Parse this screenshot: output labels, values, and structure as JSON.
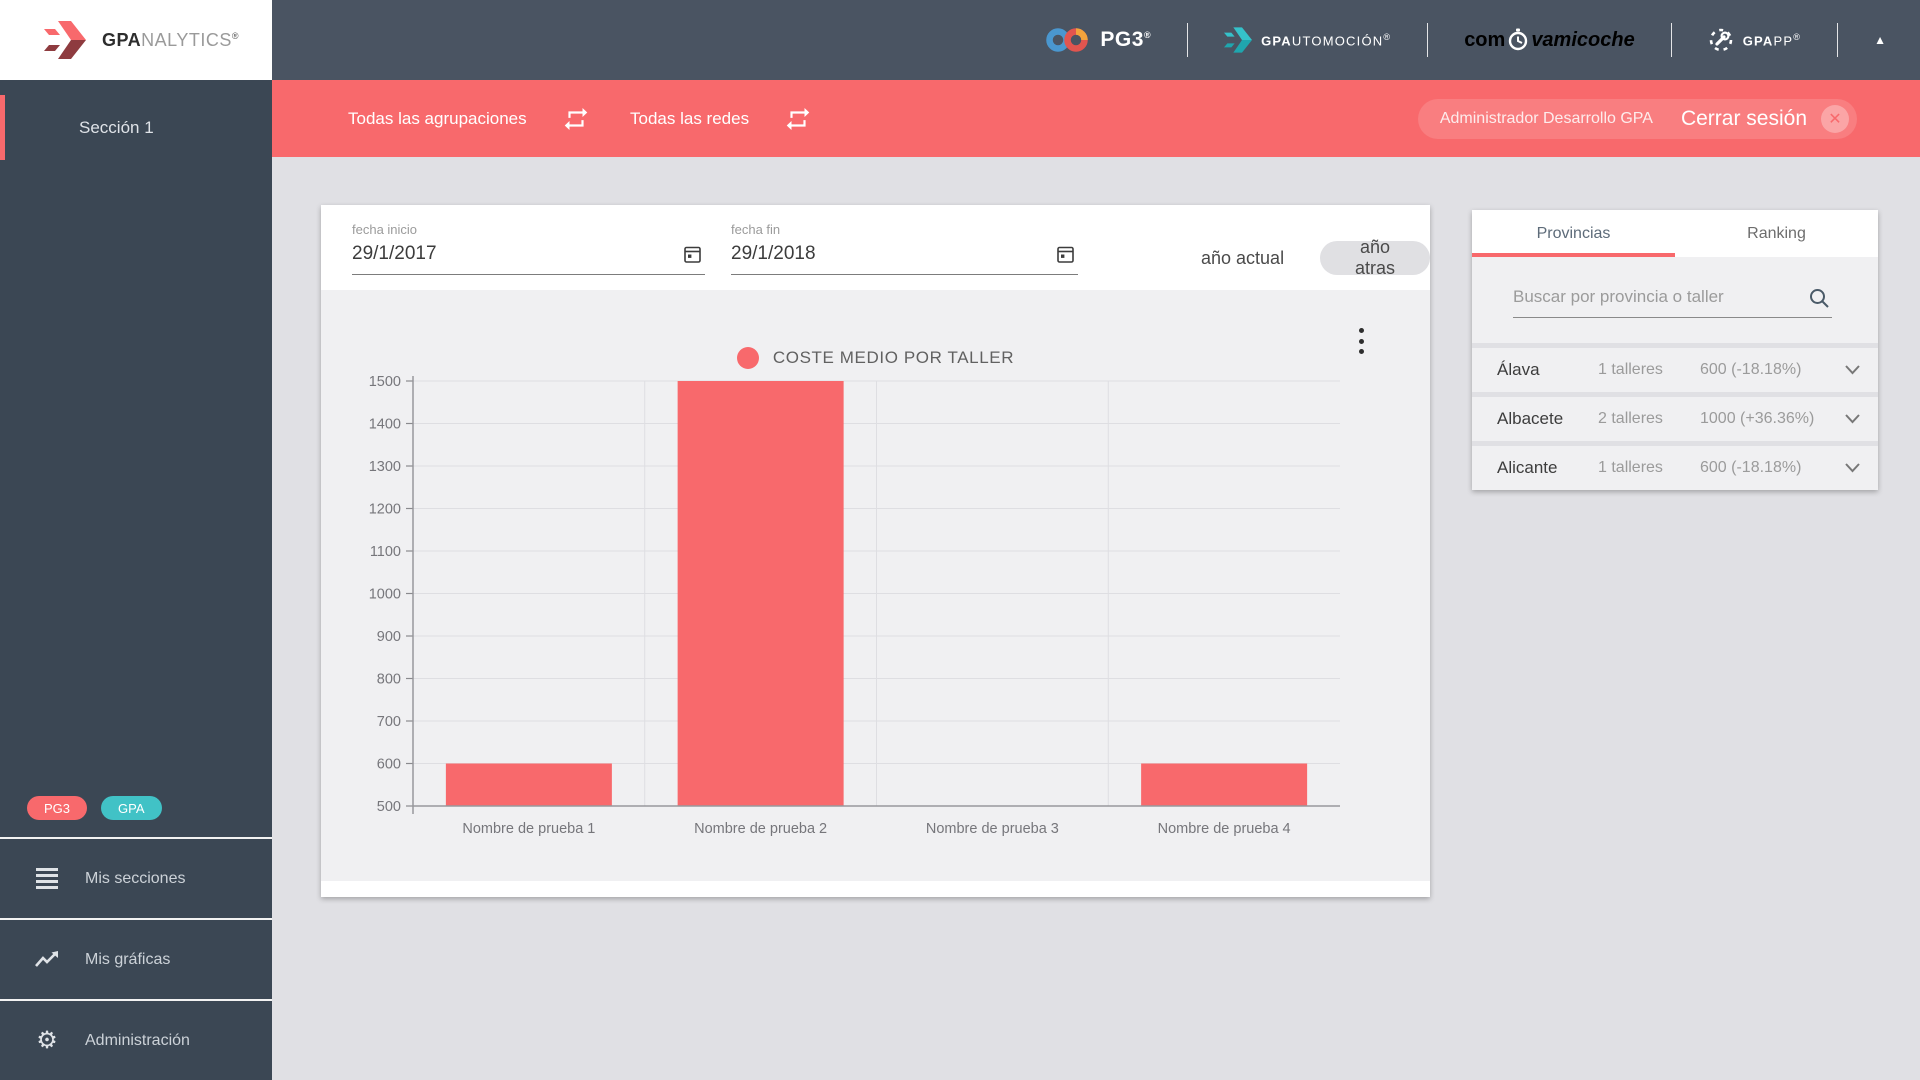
{
  "brand": {
    "bold": "GPA",
    "light": "NALYTICS",
    "reg": "®"
  },
  "header": {
    "pg3": {
      "name": "PG3",
      "reg": "®"
    },
    "gpauto": {
      "bold": "GPA",
      "rest": "UTOMOCIÓN",
      "reg": "®"
    },
    "comprova": {
      "prefix": "com",
      "suffix": "vamicoche"
    },
    "gpapp": {
      "bold": "GPA",
      "rest": "PP",
      "reg": "®"
    }
  },
  "toolbar": {
    "filters": [
      {
        "label": "Todas las agrupaciones"
      },
      {
        "label": "Todas las redes"
      }
    ],
    "user": "Administrador Desarrollo GPA",
    "logout": "Cerrar sesión"
  },
  "sidebar": {
    "section": "Sección 1",
    "badges": [
      {
        "label": "PG3",
        "color": "#f8696c"
      },
      {
        "label": "GPA",
        "color": "#41c2c6"
      }
    ],
    "menu": [
      {
        "label": "Mis secciones",
        "icon": "menu-icon"
      },
      {
        "label": "Mis gráficas",
        "icon": "line-chart-icon"
      },
      {
        "label": "Administración",
        "icon": "gear-icon"
      }
    ]
  },
  "filters": {
    "start_label": "fecha inicio",
    "start_value": "29/1/2017",
    "end_label": "fecha fin",
    "end_value": "29/1/2018",
    "current_year": "año actual",
    "previous_year": "año atras"
  },
  "chart_data": {
    "type": "bar",
    "title": "COSTE MEDIO POR TALLER",
    "categories": [
      "Nombre de prueba 1",
      "Nombre de prueba 2",
      "Nombre de prueba 3",
      "Nombre de prueba 4"
    ],
    "values": [
      600,
      1500,
      null,
      600
    ],
    "ylim": [
      500,
      1500
    ],
    "ytick_step": 100,
    "bar_color": "#f8696c",
    "grid": true,
    "legend_position": "top-center"
  },
  "panel": {
    "tabs": [
      "Provincias",
      "Ranking"
    ],
    "active_tab": "Provincias",
    "search_placeholder": "Buscar por provincia o taller",
    "rows": [
      {
        "name": "Álava",
        "talleres": "1 talleres",
        "value": "600 (-18.18%)"
      },
      {
        "name": "Albacete",
        "talleres": "2 talleres",
        "value": "1000 (+36.36%)"
      },
      {
        "name": "Alicante",
        "talleres": "1 talleres",
        "value": "600 (-18.18%)"
      }
    ]
  },
  "colors": {
    "accent_coral": "#f8696c",
    "teal": "#41c2c6",
    "header_slate": "#4a5462",
    "sidebar_slate": "#3b4754",
    "page_bg": "#e0e0e4",
    "panel_bg": "#f0f0f2"
  }
}
